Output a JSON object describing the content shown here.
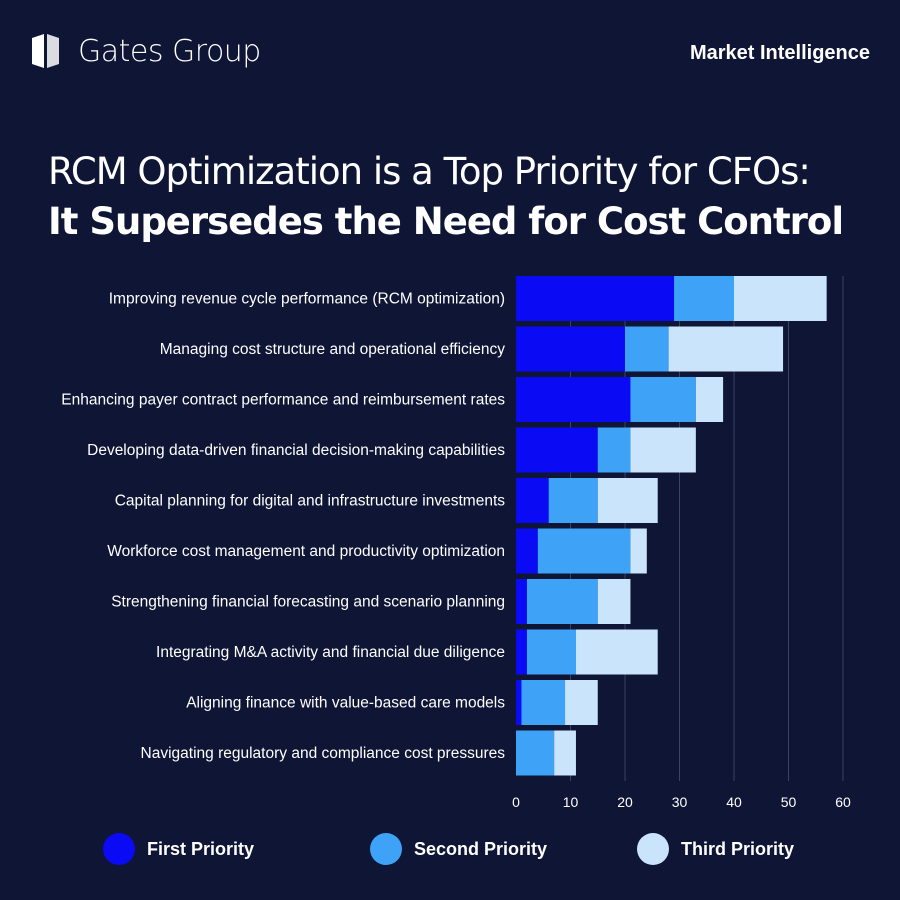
{
  "header": {
    "brand": "Gates Group",
    "section": "Market Intelligence"
  },
  "title": {
    "line1": "RCM Optimization is a Top Priority for CFOs:",
    "line2": "It Supersedes the Need for Cost Control"
  },
  "colors": {
    "background": "#0f1535",
    "first": "#0a0af5",
    "second": "#3ea3f7",
    "third": "#c9e4fb",
    "grid": "#3a4266"
  },
  "chart_data": {
    "type": "bar",
    "orientation": "horizontal",
    "stacked": true,
    "categories": [
      "Improving revenue cycle performance (RCM optimization)",
      "Managing cost structure and operational efficiency",
      "Enhancing payer contract performance and reimbursement rates",
      "Developing data-driven financial decision-making capabilities",
      "Capital planning for digital and infrastructure investments",
      "Workforce cost management and productivity optimization",
      "Strengthening financial forecasting and scenario planning",
      "Integrating M&A activity and financial due diligence",
      "Aligning finance with value-based care models",
      "Navigating regulatory and compliance cost pressures"
    ],
    "series": [
      {
        "name": "First Priority",
        "values": [
          29,
          20,
          21,
          15,
          6,
          4,
          2,
          2,
          1,
          0
        ]
      },
      {
        "name": "Second Priority",
        "values": [
          11,
          8,
          12,
          6,
          9,
          17,
          13,
          9,
          8,
          7
        ]
      },
      {
        "name": "Third Priority",
        "values": [
          17,
          21,
          5,
          12,
          11,
          3,
          6,
          15,
          6,
          4
        ]
      }
    ],
    "xlim": [
      0,
      60
    ],
    "xticks": [
      "0",
      "10",
      "20",
      "30",
      "40",
      "50",
      "60"
    ],
    "grid": true,
    "legend": "bottom"
  }
}
